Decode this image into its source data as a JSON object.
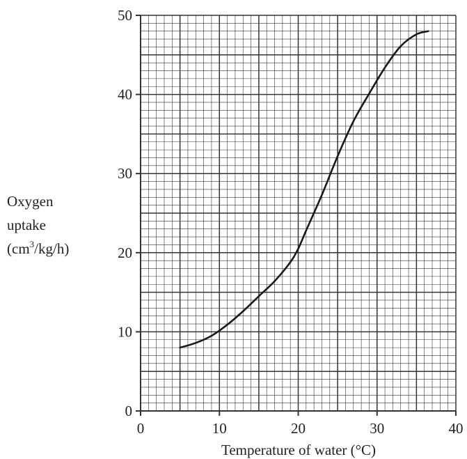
{
  "chart_data": {
    "type": "line",
    "title": "",
    "xlabel": "Temperature of water (°C)",
    "ylabel_lines": [
      "Oxygen",
      "uptake"
    ],
    "ylabel_unit": {
      "before": "(cm",
      "sup": "3",
      "after": "/kg/h)"
    },
    "xlim": [
      0,
      40
    ],
    "ylim": [
      0,
      50
    ],
    "x_ticks": [
      0,
      10,
      20,
      30,
      40
    ],
    "y_ticks": [
      0,
      10,
      20,
      30,
      40,
      50
    ],
    "x_tick_labels": [
      "0",
      "10",
      "20",
      "30",
      "40"
    ],
    "y_tick_labels": [
      "0",
      "10",
      "20",
      "30",
      "40",
      "50"
    ],
    "grid": true,
    "grid_minor_step": 1,
    "grid_major_step": 5,
    "line_color": "#1a1a1a",
    "grid_color": "#333333",
    "series": [
      {
        "x": [
          5,
          7,
          9,
          11,
          13,
          15,
          17,
          19,
          20,
          21,
          23,
          25,
          27,
          29,
          31,
          33,
          35,
          36.5
        ],
        "y": [
          8,
          8.6,
          9.5,
          10.9,
          12.6,
          14.5,
          16.4,
          18.8,
          20.5,
          22.8,
          27.3,
          32.2,
          36.6,
          40.1,
          43.4,
          46.1,
          47.6,
          48
        ]
      }
    ]
  }
}
